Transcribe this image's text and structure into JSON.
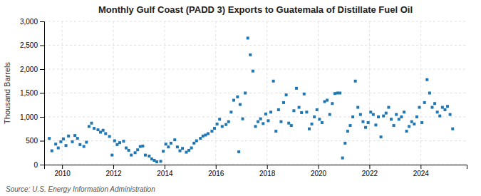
{
  "chart_data": {
    "type": "scatter",
    "title": "Monthly Gulf Coast (PADD 3) Exports to Guatemala of Distillate Fuel Oil",
    "ylabel": "Thousand Barrels",
    "source": "Source: U.S. Energy Information Administration",
    "marker": "square",
    "grid": true,
    "xlim": [
      2009.3,
      2025.8
    ],
    "xticks": [
      2010,
      2012,
      2014,
      2016,
      2018,
      2020,
      2022,
      2024
    ],
    "ylim": [
      0,
      3000
    ],
    "yticks": [
      0,
      500,
      {
        "value": 1000,
        "label": "1,000"
      },
      {
        "value": 1500,
        "label": "1,500"
      },
      {
        "value": 2000,
        "label": "2,000"
      },
      {
        "value": 2500,
        "label": "2,500"
      },
      {
        "value": 3000,
        "label": "3,000"
      }
    ],
    "x": [
      2009.5,
      2009.6,
      2009.75,
      2009.85,
      2009.95,
      2010.05,
      2010.15,
      2010.25,
      2010.4,
      2010.5,
      2010.6,
      2010.7,
      2010.85,
      2010.95,
      2011.05,
      2011.15,
      2011.25,
      2011.4,
      2011.5,
      2011.6,
      2011.7,
      2011.85,
      2011.95,
      2012.05,
      2012.15,
      2012.25,
      2012.4,
      2012.5,
      2012.6,
      2012.7,
      2012.85,
      2012.95,
      2013.05,
      2013.15,
      2013.25,
      2013.4,
      2013.5,
      2013.6,
      2013.7,
      2013.85,
      2013.95,
      2014.05,
      2014.15,
      2014.25,
      2014.4,
      2014.5,
      2014.6,
      2014.7,
      2014.85,
      2014.95,
      2015.05,
      2015.15,
      2015.25,
      2015.4,
      2015.5,
      2015.6,
      2015.7,
      2015.85,
      2015.95,
      2016.05,
      2016.15,
      2016.25,
      2016.4,
      2016.5,
      2016.6,
      2016.7,
      2016.85,
      2016.9,
      2016.95,
      2017.05,
      2017.15,
      2017.25,
      2017.35,
      2017.45,
      2017.55,
      2017.65,
      2017.75,
      2017.85,
      2017.95,
      2018.05,
      2018.15,
      2018.25,
      2018.35,
      2018.45,
      2018.55,
      2018.65,
      2018.75,
      2018.85,
      2018.95,
      2019.05,
      2019.15,
      2019.25,
      2019.35,
      2019.45,
      2019.55,
      2019.65,
      2019.75,
      2019.85,
      2019.95,
      2020.05,
      2020.15,
      2020.25,
      2020.35,
      2020.45,
      2020.55,
      2020.65,
      2020.75,
      2020.85,
      2020.95,
      2021.05,
      2021.15,
      2021.25,
      2021.35,
      2021.45,
      2021.55,
      2021.65,
      2021.75,
      2021.85,
      2021.95,
      2022.05,
      2022.15,
      2022.25,
      2022.35,
      2022.45,
      2022.55,
      2022.65,
      2022.75,
      2022.85,
      2022.95,
      2023.05,
      2023.15,
      2023.25,
      2023.35,
      2023.45,
      2023.55,
      2023.65,
      2023.75,
      2023.85,
      2023.95,
      2024.05,
      2024.15,
      2024.25,
      2024.35,
      2024.45,
      2024.55,
      2024.65,
      2024.75,
      2024.85,
      2024.95,
      2025.05,
      2025.15,
      2025.25
    ],
    "values": [
      550,
      290,
      430,
      350,
      480,
      540,
      400,
      600,
      480,
      610,
      550,
      420,
      380,
      470,
      800,
      870,
      760,
      730,
      680,
      720,
      650,
      590,
      200,
      500,
      420,
      460,
      490,
      350,
      300,
      200,
      250,
      310,
      380,
      390,
      200,
      180,
      120,
      90,
      60,
      70,
      280,
      430,
      370,
      450,
      520,
      370,
      290,
      340,
      260,
      300,
      350,
      450,
      500,
      550,
      600,
      620,
      650,
      700,
      760,
      850,
      950,
      800,
      840,
      900,
      1100,
      1350,
      1420,
      270,
      1260,
      960,
      1500,
      2650,
      2300,
      1960,
      800,
      900,
      960,
      860,
      1060,
      920,
      1100,
      1750,
      700,
      1150,
      900,
      1300,
      1460,
      870,
      820,
      1130,
      1600,
      1200,
      1090,
      1480,
      1100,
      750,
      850,
      1000,
      1150,
      950,
      880,
      1320,
      1350,
      1050,
      1280,
      1490,
      1500,
      1500,
      140,
      450,
      700,
      820,
      1000,
      1750,
      1200,
      1050,
      900,
      780,
      880,
      1100,
      1050,
      830,
      1000,
      580,
      1020,
      1080,
      1200,
      950,
      820,
      1050,
      950,
      1000,
      1100,
      700,
      800,
      900,
      850,
      1000,
      1200,
      880,
      1300,
      1780,
      1500,
      1200,
      1280,
      1100,
      1020,
      1200,
      1150,
      1220,
      1050,
      750
    ]
  }
}
